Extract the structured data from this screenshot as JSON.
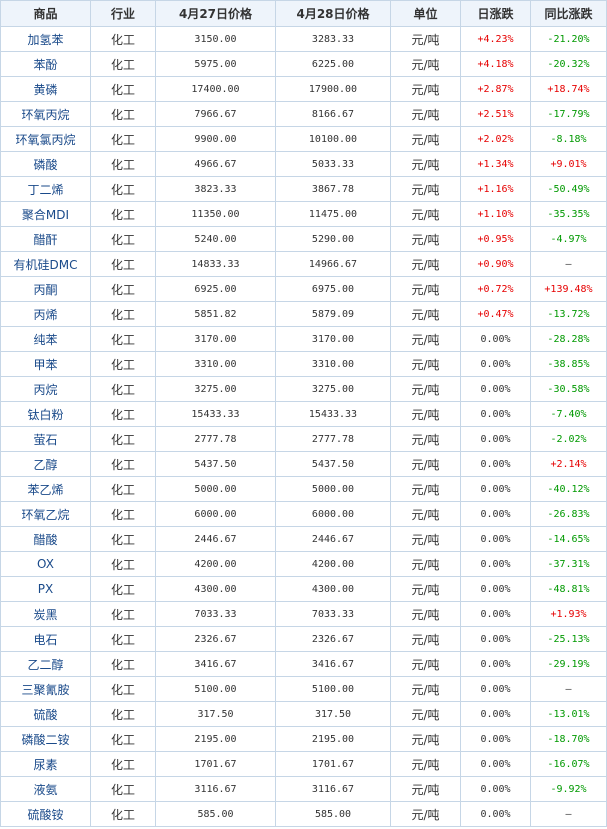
{
  "headers": [
    "商品",
    "行业",
    "4月27日价格",
    "4月28日价格",
    "单位",
    "日涨跌",
    "同比涨跌"
  ],
  "rows": [
    [
      "加氢苯",
      "化工",
      "3150.00",
      "3283.33",
      "元/吨",
      "+4.23%",
      "-21.20%"
    ],
    [
      "苯酚",
      "化工",
      "5975.00",
      "6225.00",
      "元/吨",
      "+4.18%",
      "-20.32%"
    ],
    [
      "黄磷",
      "化工",
      "17400.00",
      "17900.00",
      "元/吨",
      "+2.87%",
      "+18.74%"
    ],
    [
      "环氧丙烷",
      "化工",
      "7966.67",
      "8166.67",
      "元/吨",
      "+2.51%",
      "-17.79%"
    ],
    [
      "环氧氯丙烷",
      "化工",
      "9900.00",
      "10100.00",
      "元/吨",
      "+2.02%",
      "-8.18%"
    ],
    [
      "磷酸",
      "化工",
      "4966.67",
      "5033.33",
      "元/吨",
      "+1.34%",
      "+9.01%"
    ],
    [
      "丁二烯",
      "化工",
      "3823.33",
      "3867.78",
      "元/吨",
      "+1.16%",
      "-50.49%"
    ],
    [
      "聚合MDI",
      "化工",
      "11350.00",
      "11475.00",
      "元/吨",
      "+1.10%",
      "-35.35%"
    ],
    [
      "醋酐",
      "化工",
      "5240.00",
      "5290.00",
      "元/吨",
      "+0.95%",
      "-4.97%"
    ],
    [
      "有机硅DMC",
      "化工",
      "14833.33",
      "14966.67",
      "元/吨",
      "+0.90%",
      "—"
    ],
    [
      "丙酮",
      "化工",
      "6925.00",
      "6975.00",
      "元/吨",
      "+0.72%",
      "+139.48%"
    ],
    [
      "丙烯",
      "化工",
      "5851.82",
      "5879.09",
      "元/吨",
      "+0.47%",
      "-13.72%"
    ],
    [
      "纯苯",
      "化工",
      "3170.00",
      "3170.00",
      "元/吨",
      "0.00%",
      "-28.28%"
    ],
    [
      "甲苯",
      "化工",
      "3310.00",
      "3310.00",
      "元/吨",
      "0.00%",
      "-38.85%"
    ],
    [
      "丙烷",
      "化工",
      "3275.00",
      "3275.00",
      "元/吨",
      "0.00%",
      "-30.58%"
    ],
    [
      "钛白粉",
      "化工",
      "15433.33",
      "15433.33",
      "元/吨",
      "0.00%",
      "-7.40%"
    ],
    [
      "萤石",
      "化工",
      "2777.78",
      "2777.78",
      "元/吨",
      "0.00%",
      "-2.02%"
    ],
    [
      "乙醇",
      "化工",
      "5437.50",
      "5437.50",
      "元/吨",
      "0.00%",
      "+2.14%"
    ],
    [
      "苯乙烯",
      "化工",
      "5000.00",
      "5000.00",
      "元/吨",
      "0.00%",
      "-40.12%"
    ],
    [
      "环氧乙烷",
      "化工",
      "6000.00",
      "6000.00",
      "元/吨",
      "0.00%",
      "-26.83%"
    ],
    [
      "醋酸",
      "化工",
      "2446.67",
      "2446.67",
      "元/吨",
      "0.00%",
      "-14.65%"
    ],
    [
      "OX",
      "化工",
      "4200.00",
      "4200.00",
      "元/吨",
      "0.00%",
      "-37.31%"
    ],
    [
      "PX",
      "化工",
      "4300.00",
      "4300.00",
      "元/吨",
      "0.00%",
      "-48.81%"
    ],
    [
      "炭黑",
      "化工",
      "7033.33",
      "7033.33",
      "元/吨",
      "0.00%",
      "+1.93%"
    ],
    [
      "电石",
      "化工",
      "2326.67",
      "2326.67",
      "元/吨",
      "0.00%",
      "-25.13%"
    ],
    [
      "乙二醇",
      "化工",
      "3416.67",
      "3416.67",
      "元/吨",
      "0.00%",
      "-29.19%"
    ],
    [
      "三聚氰胺",
      "化工",
      "5100.00",
      "5100.00",
      "元/吨",
      "0.00%",
      "—"
    ],
    [
      "硫酸",
      "化工",
      "317.50",
      "317.50",
      "元/吨",
      "0.00%",
      "-13.01%"
    ],
    [
      "磷酸二铵",
      "化工",
      "2195.00",
      "2195.00",
      "元/吨",
      "0.00%",
      "-18.70%"
    ],
    [
      "尿素",
      "化工",
      "1701.67",
      "1701.67",
      "元/吨",
      "0.00%",
      "-16.07%"
    ],
    [
      "液氨",
      "化工",
      "3116.67",
      "3116.67",
      "元/吨",
      "0.00%",
      "-9.92%"
    ],
    [
      "硫酸铵",
      "化工",
      "585.00",
      "585.00",
      "元/吨",
      "0.00%",
      "—"
    ]
  ],
  "colors": {
    "up": "#e60000",
    "down": "#009900",
    "link": "#1a4a8a",
    "header_bg": "#eef4fb",
    "border": "#c6d6e6"
  }
}
